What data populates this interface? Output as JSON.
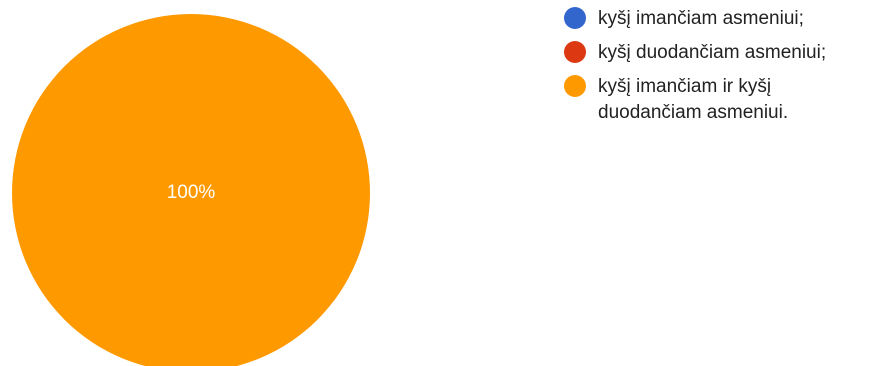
{
  "chart_data": {
    "type": "pie",
    "title": "",
    "series": [
      {
        "name": "kyšį imančiam asmeniui;",
        "value": 0,
        "color": "#3366cc"
      },
      {
        "name": "kyšį duodančiam asmeniui;",
        "value": 0,
        "color": "#dc3912"
      },
      {
        "name": "kyšį imančiam ir kyšį duodančiam asmeniui.",
        "value": 100,
        "color": "#ff9900"
      }
    ],
    "data_labels": [
      "",
      "",
      "100%"
    ],
    "legend_position": "right"
  }
}
